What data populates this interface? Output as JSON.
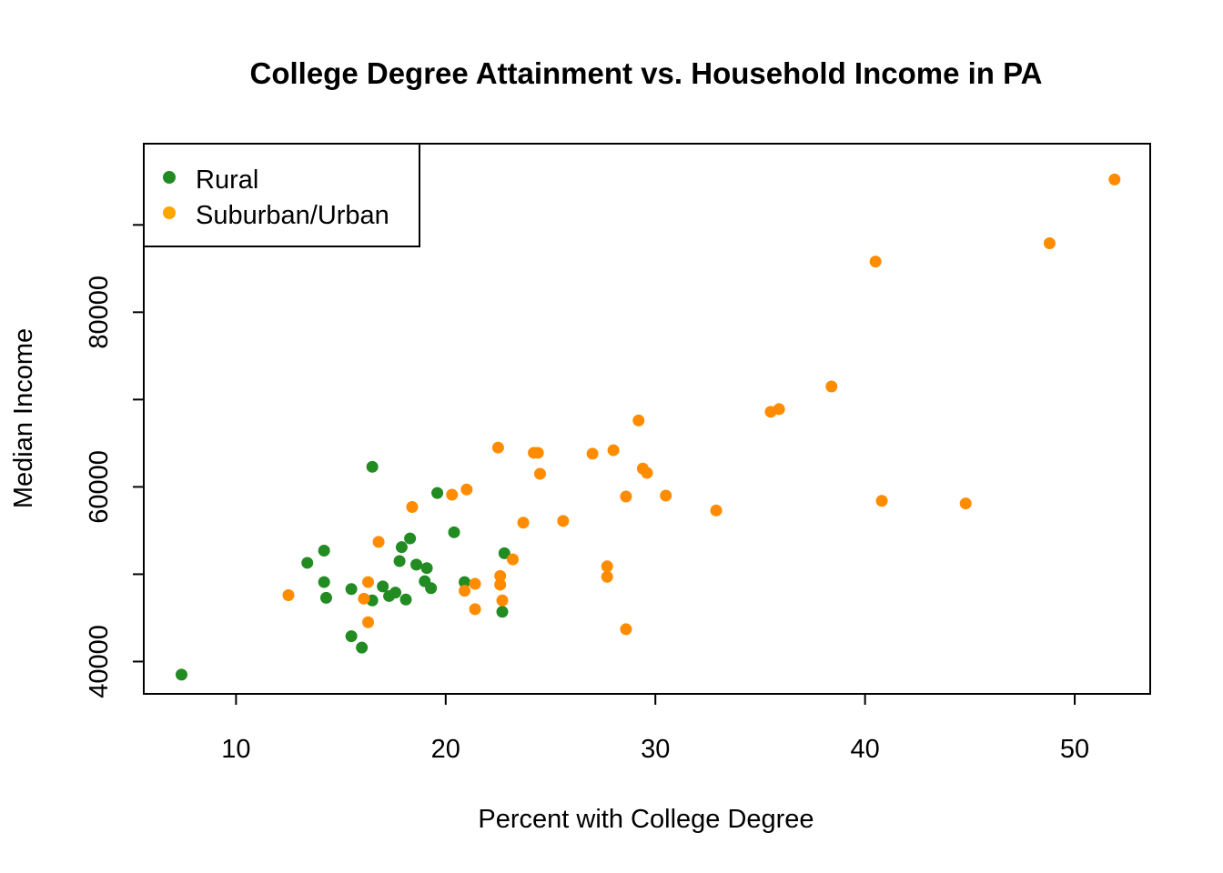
{
  "chart_data": {
    "type": "scatter",
    "title": "College Degree Attainment vs. Household Income in PA",
    "xlabel": "Percent with College Degree",
    "ylabel": "Median Income",
    "xlim": [
      5.6,
      53.6
    ],
    "ylim": [
      36300,
      99300
    ],
    "x_ticks": [
      10,
      20,
      30,
      40,
      50
    ],
    "y_ticks": [
      40000,
      50000,
      60000,
      70000,
      80000,
      90000
    ],
    "y_tick_labels": [
      "40000",
      "",
      "60000",
      "",
      "80000",
      ""
    ],
    "grid": false,
    "legend": {
      "position": "top-left",
      "entries": [
        {
          "label": "Rural",
          "color": "#228B22"
        },
        {
          "label": "Suburban/Urban",
          "color": "#FFA500"
        }
      ]
    },
    "series": [
      {
        "name": "Rural",
        "color": "#228B22",
        "points": [
          [
            7.4,
            38500
          ],
          [
            16.5,
            62300
          ],
          [
            13.4,
            51300
          ],
          [
            14.2,
            52700
          ],
          [
            14.2,
            49100
          ],
          [
            14.3,
            47300
          ],
          [
            15.5,
            48300
          ],
          [
            15.5,
            42900
          ],
          [
            16.0,
            41600
          ],
          [
            16.5,
            47000
          ],
          [
            17.0,
            48600
          ],
          [
            17.3,
            47500
          ],
          [
            17.6,
            47900
          ],
          [
            17.8,
            51500
          ],
          [
            17.9,
            53100
          ],
          [
            18.1,
            47100
          ],
          [
            18.3,
            54100
          ],
          [
            18.6,
            51100
          ],
          [
            19.0,
            49200
          ],
          [
            19.1,
            50700
          ],
          [
            19.3,
            48400
          ],
          [
            19.6,
            59300
          ],
          [
            20.4,
            54800
          ],
          [
            20.9,
            49100
          ],
          [
            22.7,
            45700
          ],
          [
            22.8,
            52400
          ]
        ]
      },
      {
        "name": "Suburban/Urban",
        "color": "#FF8C00",
        "points": [
          [
            12.5,
            47600
          ],
          [
            16.1,
            47200
          ],
          [
            16.3,
            49100
          ],
          [
            16.3,
            44500
          ],
          [
            16.8,
            53700
          ],
          [
            18.4,
            57700
          ],
          [
            20.3,
            59100
          ],
          [
            20.9,
            48100
          ],
          [
            21.0,
            59700
          ],
          [
            21.4,
            48900
          ],
          [
            21.4,
            46000
          ],
          [
            22.5,
            64500
          ],
          [
            22.6,
            49800
          ],
          [
            22.6,
            48800
          ],
          [
            22.7,
            47000
          ],
          [
            23.2,
            51700
          ],
          [
            23.7,
            55900
          ],
          [
            24.2,
            63900
          ],
          [
            24.4,
            63900
          ],
          [
            24.5,
            61500
          ],
          [
            25.6,
            56100
          ],
          [
            27.0,
            63800
          ],
          [
            27.7,
            50900
          ],
          [
            27.7,
            49700
          ],
          [
            28.0,
            64200
          ],
          [
            28.6,
            58900
          ],
          [
            28.6,
            43700
          ],
          [
            29.2,
            67600
          ],
          [
            29.4,
            62100
          ],
          [
            29.6,
            61600
          ],
          [
            30.5,
            59000
          ],
          [
            32.9,
            57300
          ],
          [
            35.5,
            68600
          ],
          [
            35.9,
            68900
          ],
          [
            38.4,
            71500
          ],
          [
            40.5,
            85800
          ],
          [
            40.8,
            58400
          ],
          [
            44.8,
            58100
          ],
          [
            48.8,
            87900
          ],
          [
            51.9,
            95200
          ]
        ]
      }
    ]
  }
}
